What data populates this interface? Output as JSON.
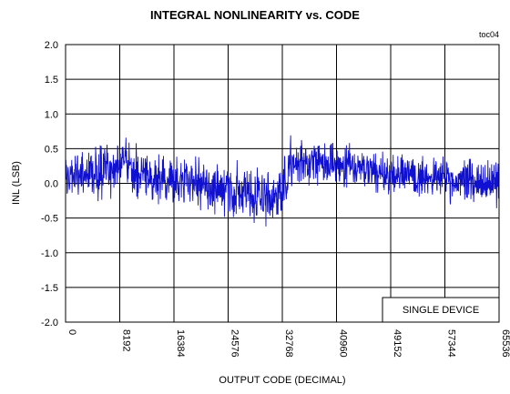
{
  "chart_data": {
    "type": "line",
    "title": "INTEGRAL NONLINEARITY vs. CODE",
    "figure_tag": "toc04",
    "xlabel": "OUTPUT CODE (DECIMAL)",
    "ylabel": "INL (LSB)",
    "xlim": [
      0,
      65536
    ],
    "ylim": [
      -2.0,
      2.0
    ],
    "x_ticks": [
      "0",
      "8192",
      "16384",
      "24576",
      "32768",
      "40960",
      "49152",
      "57344",
      "65536"
    ],
    "y_ticks": [
      "2.0",
      "1.5",
      "1.0",
      "0.5",
      "0.0",
      "-0.5",
      "-1.0",
      "-1.5",
      "-2.0"
    ],
    "grid": true,
    "annotation": "SINGLE DEVICE",
    "series_color": "#1010d0",
    "envelope": [
      {
        "x": 0,
        "min": -0.35,
        "max": 0.5
      },
      {
        "x": 8192,
        "min": -0.25,
        "max": 0.75
      },
      {
        "x": 16384,
        "min": -0.45,
        "max": 0.55
      },
      {
        "x": 24576,
        "min": -0.6,
        "max": 0.4
      },
      {
        "x": 32000,
        "min": -0.75,
        "max": 0.3
      },
      {
        "x": 32768,
        "min": -0.55,
        "max": 0.45
      },
      {
        "x": 34000,
        "min": -0.2,
        "max": 0.75
      },
      {
        "x": 40960,
        "min": -0.1,
        "max": 0.7
      },
      {
        "x": 49152,
        "min": -0.3,
        "max": 0.55
      },
      {
        "x": 57344,
        "min": -0.35,
        "max": 0.45
      },
      {
        "x": 65536,
        "min": -0.4,
        "max": 0.45
      }
    ]
  }
}
